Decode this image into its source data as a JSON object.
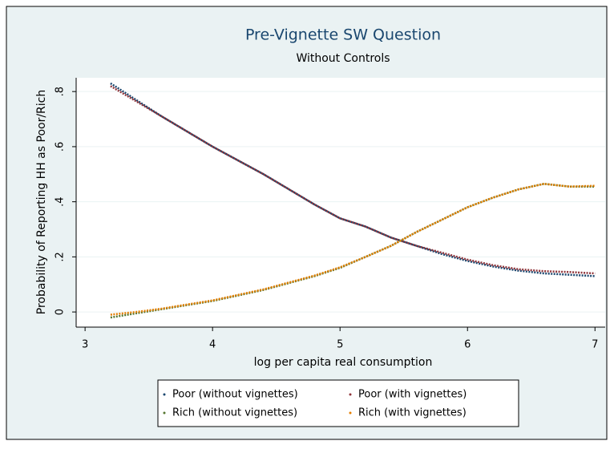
{
  "chart_data": {
    "type": "line",
    "title": "Pre-Vignette SW Question",
    "subtitle": "Without Controls",
    "x_label": "log per capita real consumption",
    "y_label": "Probability of Reporting HH as Poor/Rich",
    "x": [
      3.2,
      3.4,
      3.6,
      3.8,
      4.0,
      4.2,
      4.4,
      4.6,
      4.8,
      5.0,
      5.2,
      5.4,
      5.6,
      5.8,
      6.0,
      6.2,
      6.4,
      6.6,
      6.8,
      7.0
    ],
    "series": [
      {
        "name": "Poor (without vignettes)",
        "color": "#1a476f",
        "values": [
          0.83,
          0.77,
          0.71,
          0.655,
          0.6,
          0.55,
          0.5,
          0.445,
          0.39,
          0.34,
          0.31,
          0.27,
          0.24,
          0.21,
          0.185,
          0.165,
          0.15,
          0.14,
          0.135,
          0.13
        ]
      },
      {
        "name": "Poor (with vignettes)",
        "color": "#90353b",
        "values": [
          0.82,
          0.765,
          0.71,
          0.655,
          0.6,
          0.55,
          0.5,
          0.445,
          0.39,
          0.34,
          0.31,
          0.27,
          0.24,
          0.215,
          0.19,
          0.17,
          0.155,
          0.148,
          0.145,
          0.14
        ]
      },
      {
        "name": "Rich (without vignettes)",
        "color": "#55752f",
        "values": [
          -0.02,
          -0.005,
          0.01,
          0.025,
          0.04,
          0.06,
          0.08,
          0.105,
          0.13,
          0.16,
          0.2,
          0.24,
          0.29,
          0.335,
          0.38,
          0.415,
          0.445,
          0.465,
          0.455,
          0.455
        ]
      },
      {
        "name": "Rich (with vignettes)",
        "color": "#e37e00",
        "values": [
          -0.01,
          0.0,
          0.012,
          0.027,
          0.042,
          0.062,
          0.082,
          0.107,
          0.132,
          0.162,
          0.2,
          0.24,
          0.29,
          0.335,
          0.38,
          0.415,
          0.445,
          0.465,
          0.455,
          0.458
        ]
      }
    ],
    "xlim": [
      2.93,
      7.08
    ],
    "xticks": [
      3,
      4,
      5,
      6,
      7
    ],
    "ylim": [
      -0.055,
      0.85
    ],
    "yticks": [
      {
        "value": 0,
        "label": "0"
      },
      {
        "value": 0.2,
        "label": ".2"
      },
      {
        "value": 0.4,
        "label": ".4"
      },
      {
        "value": 0.6,
        "label": ".6"
      },
      {
        "value": 0.8,
        "label": ".8"
      }
    ],
    "grid": true,
    "legend": "bottom"
  }
}
